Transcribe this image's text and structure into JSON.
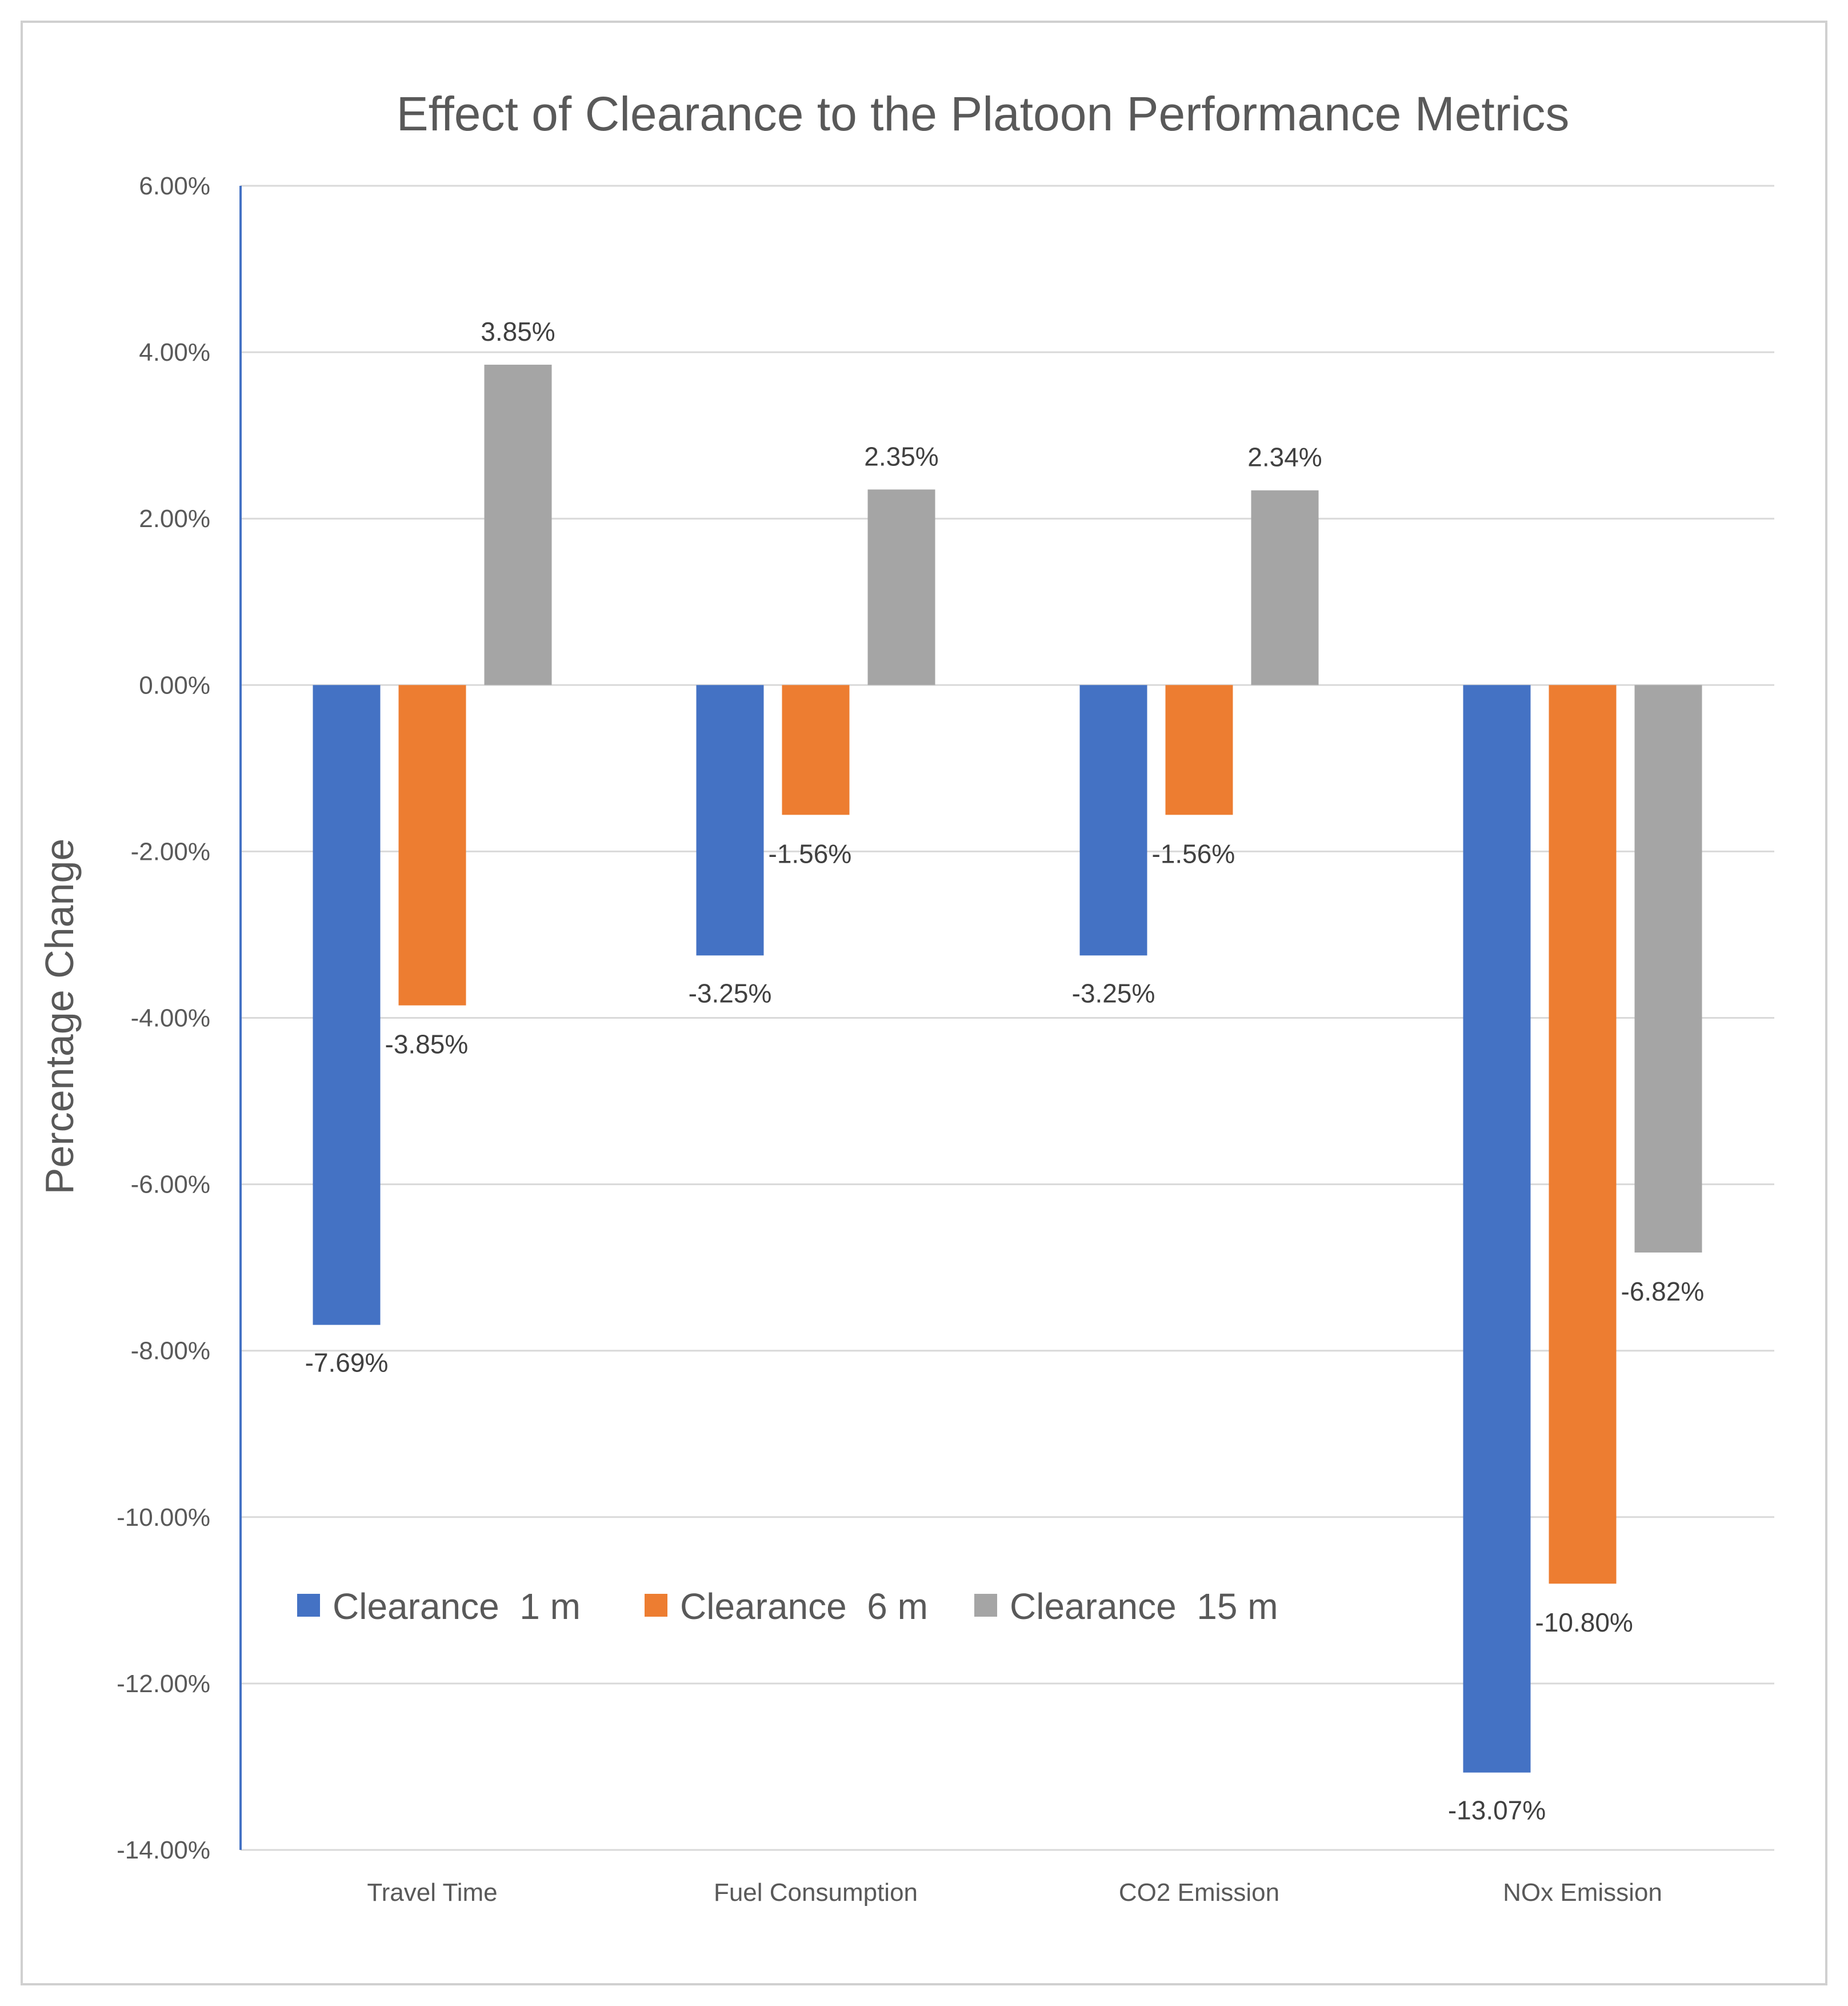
{
  "chart_data": {
    "type": "bar",
    "title": "Effect of Clearance to the Platoon Performance Metrics",
    "xlabel": "",
    "ylabel": "Percentage Change",
    "ylim": [
      -14,
      6
    ],
    "ytick_step": 2,
    "ytick_format": "percent_2dp",
    "grid": true,
    "legend_position": "bottom-left-inside",
    "categories": [
      "Travel Time",
      "Fuel Consumption",
      "CO2 Emission",
      "NOx Emission"
    ],
    "series": [
      {
        "name": "Clearance  1 m",
        "color": "#4472C4",
        "values": [
          -7.69,
          -3.25,
          -3.25,
          -13.07
        ],
        "labels": [
          "-7.69%",
          "-3.25%",
          "-3.25%",
          "-13.07%"
        ]
      },
      {
        "name": "Clearance  6 m",
        "color": "#ED7D31",
        "values": [
          -3.85,
          -1.56,
          -1.56,
          -10.8
        ],
        "labels": [
          "-3.85%",
          "-1.56%",
          "-1.56%",
          "-10.80%"
        ]
      },
      {
        "name": "Clearance  15 m",
        "color": "#A5A5A5",
        "values": [
          3.85,
          2.35,
          2.34,
          -6.82
        ],
        "labels": [
          "3.85%",
          "2.35%",
          "2.34%",
          "-6.82%"
        ]
      }
    ]
  }
}
